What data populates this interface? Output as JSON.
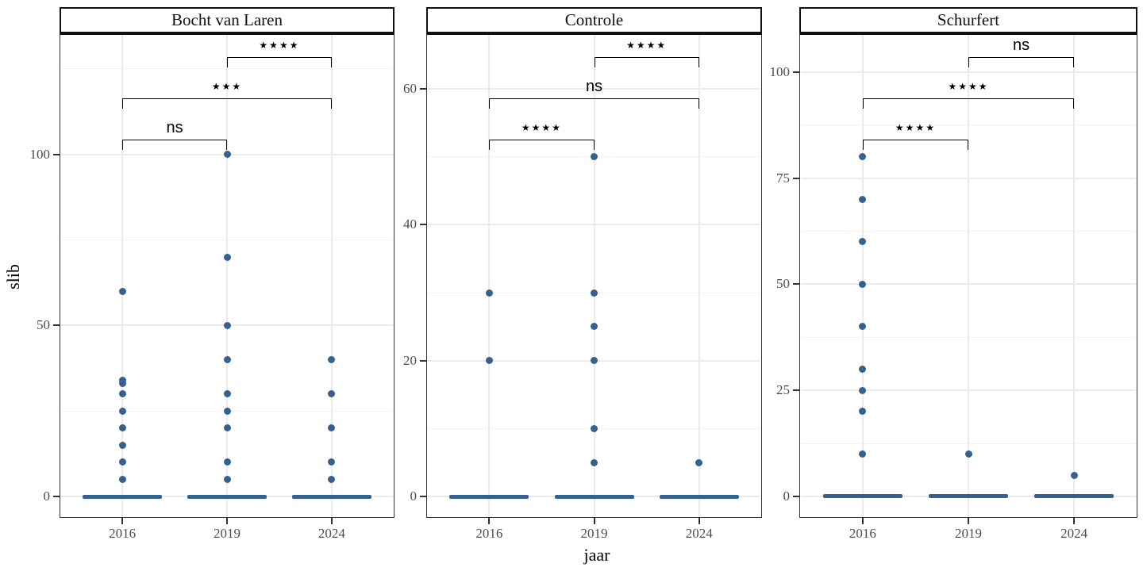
{
  "figure": {
    "y_axis_label": "slib",
    "x_axis_label": "jaar",
    "point_color": "#35618f",
    "grid_major_color": "#ebebeb",
    "grid_minor_color": "#f4f4f4",
    "panel_border_color": "#333333",
    "strip_border_color": "#111111",
    "tick_label_color": "#4d4d4d"
  },
  "chart_data": [
    {
      "type": "scatter",
      "title": "Bocht van Laren",
      "xlabel": "jaar",
      "ylabel": "slib",
      "categories": [
        "2016",
        "2019",
        "2024"
      ],
      "y_ticks": [
        0,
        50,
        100
      ],
      "y_minor_ticks": [
        25,
        75,
        125
      ],
      "ylim": [
        -6.25,
        135.4
      ],
      "grid": true,
      "legend": false,
      "series": [
        {
          "name": "2016",
          "values": [
            60,
            34,
            33,
            30,
            25,
            20,
            15,
            10,
            5
          ],
          "zero_cluster": true
        },
        {
          "name": "2019",
          "values": [
            100,
            70,
            50,
            40,
            30,
            25,
            20,
            10,
            5
          ],
          "zero_cluster": true
        },
        {
          "name": "2024",
          "values": [
            40,
            30,
            20,
            10,
            5
          ],
          "zero_cluster": true
        }
      ],
      "significance_brackets": [
        {
          "group1": "2016",
          "group2": "2019",
          "label": "ns"
        },
        {
          "group1": "2016",
          "group2": "2024",
          "label": "***"
        },
        {
          "group1": "2019",
          "group2": "2024",
          "label": "****"
        }
      ]
    },
    {
      "type": "scatter",
      "title": "Controle",
      "xlabel": "jaar",
      "ylabel": "slib",
      "categories": [
        "2016",
        "2019",
        "2024"
      ],
      "y_ticks": [
        0,
        20,
        40,
        60
      ],
      "y_minor_ticks": [
        10,
        30,
        50
      ],
      "ylim": [
        -3.15,
        68.2
      ],
      "grid": true,
      "legend": false,
      "series": [
        {
          "name": "2016",
          "values": [
            30,
            20
          ],
          "zero_cluster": true
        },
        {
          "name": "2019",
          "values": [
            50,
            30,
            25,
            20,
            10,
            5
          ],
          "zero_cluster": true
        },
        {
          "name": "2024",
          "values": [
            5
          ],
          "zero_cluster": true
        }
      ],
      "significance_brackets": [
        {
          "group1": "2016",
          "group2": "2019",
          "label": "****"
        },
        {
          "group1": "2016",
          "group2": "2024",
          "label": "ns"
        },
        {
          "group1": "2019",
          "group2": "2024",
          "label": "****"
        }
      ]
    },
    {
      "type": "scatter",
      "title": "Schurfert",
      "xlabel": "jaar",
      "ylabel": "slib",
      "categories": [
        "2016",
        "2019",
        "2024"
      ],
      "y_ticks": [
        0,
        25,
        50,
        75,
        100
      ],
      "y_minor_ticks": [
        12.5,
        37.5,
        62.5,
        87.5
      ],
      "ylim": [
        -5.05,
        109.15
      ],
      "grid": true,
      "legend": false,
      "series": [
        {
          "name": "2016",
          "values": [
            80,
            70,
            60,
            50,
            40,
            30,
            25,
            20,
            10
          ],
          "zero_cluster": true
        },
        {
          "name": "2019",
          "values": [
            10
          ],
          "zero_cluster": true
        },
        {
          "name": "2024",
          "values": [
            5
          ],
          "zero_cluster": true
        }
      ],
      "significance_brackets": [
        {
          "group1": "2016",
          "group2": "2019",
          "label": "****"
        },
        {
          "group1": "2016",
          "group2": "2024",
          "label": "****"
        },
        {
          "group1": "2019",
          "group2": "2024",
          "label": "ns"
        }
      ]
    }
  ]
}
